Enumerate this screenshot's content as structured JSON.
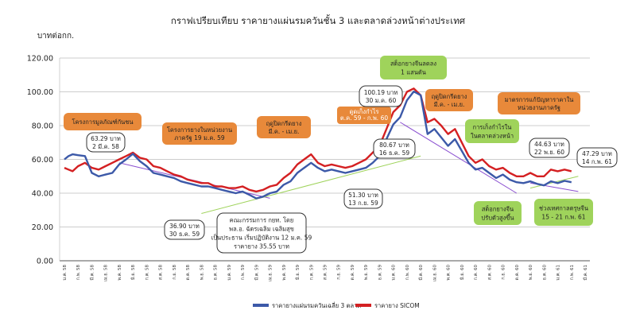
{
  "chart_data": {
    "type": "line",
    "title": "กราฟเปรียบเทียบ ราคายางแผ่นรมควันชั้น 3 และตลาดล่วงหน้าต่างประเทศ",
    "ylabel": "บาทต่อกก.",
    "ylim": [
      0,
      120
    ],
    "yticks": [
      "0.00",
      "20.00",
      "40.00",
      "60.00",
      "80.00",
      "100.00",
      "120.00"
    ],
    "xticks": [
      "ม.ค. 58",
      "ก.พ. 58",
      "มี.ค. 58",
      "เม.ย. 58",
      "พ.ค. 58",
      "มิ.ย. 58",
      "ก.ค. 58",
      "ส.ค. 58",
      "ก.ย. 58",
      "ต.ค. 58",
      "พ.ย. 58",
      "ธ.ค. 58",
      "ม.ค. 59",
      "ก.พ. 59",
      "มี.ค. 59",
      "เม.ย. 59",
      "พ.ค. 59",
      "มิ.ย. 59",
      "ก.ค. 59",
      "ส.ค. 59",
      "ก.ย. 59",
      "ต.ค. 59",
      "พ.ย. 59",
      "ธ.ค. 59",
      "ม.ค. 60",
      "ก.พ. 60",
      "มี.ค. 60",
      "เม.ย. 60",
      "พ.ค. 60",
      "มิ.ย. 60",
      "ก.ค. 60",
      "ส.ค. 60",
      "ก.ย. 60",
      "ต.ค. 60",
      "พ.ย. 60",
      "ธ.ค. 60",
      "ม.ค. 61",
      "ก.พ. 61",
      "มี.ค. 61"
    ],
    "series": [
      {
        "name": "ราคายางแผ่นรมควันเฉลี่ย 3 ตลาด",
        "color": "#3c59a8",
        "x": [
          0,
          0.3,
          0.6,
          1,
          1.5,
          2,
          2.5,
          3,
          3.5,
          4,
          4.5,
          5,
          5.5,
          6,
          6.5,
          7,
          7.5,
          8,
          8.5,
          9,
          9.5,
          10,
          10.5,
          11,
          11.5,
          12,
          12.5,
          13,
          13.5,
          14,
          14.5,
          15,
          15.5,
          16,
          16.5,
          17,
          17.5,
          18,
          18.5,
          19,
          19.5,
          20,
          20.5,
          21,
          21.5,
          22,
          22.5,
          23,
          23.5,
          24,
          24.5,
          25,
          25.5,
          26,
          26.5,
          27,
          27.5,
          28,
          28.5,
          29,
          29.5,
          30,
          30.5,
          31,
          31.5,
          32,
          32.5,
          33,
          33.5,
          34,
          34.5,
          35,
          35.5,
          36,
          36.5,
          37
        ],
        "values": [
          60,
          62,
          63,
          62.5,
          62,
          52,
          50,
          51,
          52,
          57,
          60,
          63.3,
          59,
          56,
          52,
          51,
          50,
          49,
          47,
          46,
          45,
          44,
          44,
          43,
          42,
          41,
          40,
          41,
          39,
          36.9,
          38,
          40,
          41,
          45,
          47,
          52,
          55,
          58,
          55,
          53,
          54,
          53,
          52,
          53,
          54,
          55,
          58,
          62,
          72,
          80.7,
          85,
          95,
          100.2,
          98,
          75,
          78,
          73,
          68,
          72,
          65,
          58,
          54,
          55,
          52,
          49,
          51,
          48,
          46.5,
          46,
          47,
          45.5,
          44.6,
          47,
          46,
          47.3,
          46.5
        ]
      },
      {
        "name": "ราคายาง SICOM",
        "color": "#d42022",
        "x": [
          0,
          0.3,
          0.6,
          1,
          1.5,
          2,
          2.5,
          3,
          3.5,
          4,
          4.5,
          5,
          5.5,
          6,
          6.5,
          7,
          7.5,
          8,
          8.5,
          9,
          9.5,
          10,
          10.5,
          11,
          11.5,
          12,
          12.5,
          13,
          13.5,
          14,
          14.5,
          15,
          15.5,
          16,
          16.5,
          17,
          17.5,
          18,
          18.5,
          19,
          19.5,
          20,
          20.5,
          21,
          21.5,
          22,
          22.5,
          23,
          23.5,
          24,
          24.5,
          25,
          25.5,
          26,
          26.5,
          27,
          27.5,
          28,
          28.5,
          29,
          29.5,
          30,
          30.5,
          31,
          31.5,
          32,
          32.5,
          33,
          33.5,
          34,
          34.5,
          35,
          35.5,
          36,
          36.5,
          37
        ],
        "values": [
          55,
          54,
          53,
          56,
          58,
          55,
          54,
          56,
          58,
          60,
          62,
          64,
          61,
          60,
          56,
          55,
          53,
          51,
          50,
          48,
          47,
          46,
          46,
          44,
          44,
          43,
          43,
          44,
          42,
          41,
          42,
          44,
          45,
          49,
          52,
          57,
          60,
          63,
          58,
          56,
          57,
          56,
          55,
          56,
          58,
          60,
          64,
          68,
          78,
          88,
          92,
          100,
          102,
          98,
          82,
          84,
          80,
          75,
          78,
          70,
          62,
          58,
          60,
          56,
          54,
          55,
          52,
          50,
          50,
          52,
          50,
          50,
          54,
          53,
          54,
          53
        ]
      }
    ],
    "trend_lines": [
      {
        "color": "#8a4fd0",
        "x": [
          4,
          15
        ],
        "values": [
          58,
          37
        ]
      },
      {
        "color": "#9fd35b",
        "x": [
          10,
          26
        ],
        "values": [
          28,
          62
        ]
      },
      {
        "color": "#8a4fd0",
        "x": [
          24.5,
          33
        ],
        "values": [
          82,
          40
        ]
      },
      {
        "color": "#9fd35b",
        "x": [
          34,
          37.5
        ],
        "values": [
          43,
          50
        ]
      },
      {
        "color": "#8a4fd0",
        "x": [
          34,
          37.5
        ],
        "values": [
          46,
          41
        ]
      }
    ],
    "annotations": {
      "orange": [
        {
          "id": "project-stabilize",
          "lines": [
            "โครงการมูลภัณฑ์กันชน"
          ]
        },
        {
          "id": "project-gov",
          "lines": [
            "โครงการยางในหน่วยงาน",
            "ภาครัฐ 19 ม.ค. 59"
          ]
        },
        {
          "id": "season-close-1",
          "lines": [
            "ฤดูปิดกรีดยาง",
            "มี.ค. - เม.ย."
          ]
        },
        {
          "id": "speculation",
          "lines": [
            "ดูดเก็งกำไร",
            "ต.ค. 59 - ก.พ. 60"
          ]
        },
        {
          "id": "season-close-2",
          "lines": [
            "ฤดูปิดกรีดยาง",
            "มี.ค. - เม.ย."
          ]
        },
        {
          "id": "gov-measures",
          "lines": [
            "มาตรการแก้ปัญหาราคาใน",
            "หน่วยงานภาครัฐ"
          ]
        }
      ],
      "green": [
        {
          "id": "stock-high",
          "lines": [
            "สต็อกยางจีนลดลง",
            "1 แสนตัน"
          ]
        },
        {
          "id": "speculate-futures",
          "lines": [
            "การเก็งกำไรใน",
            "ในตลาดล่วงหน้า"
          ]
        },
        {
          "id": "stock-rise",
          "lines": [
            "สต็อกยางจีน",
            "ปรับตัวสูงขึ้น"
          ]
        },
        {
          "id": "china-holiday",
          "lines": [
            "ช่วงเทศกาลตรุษจีน",
            "15 - 21 ก.พ. 61"
          ]
        }
      ],
      "white": [
        {
          "id": "p-6329",
          "lines": [
            "63.29 บาท",
            "2 มี.ค. 58"
          ]
        },
        {
          "id": "p-3690",
          "lines": [
            "36.90 บาท",
            "30 ธ.ค. 59"
          ]
        },
        {
          "id": "committee",
          "lines": [
            "คณะกรรมการ กยท. โดย",
            "พล.อ. ฉัตรเฉลิม เฉลิมสุข",
            "เป็นประธาน เริ่มปฏิบัติงาน 12 ม.ค. 59",
            "ราคายาง 35.55 บาท"
          ]
        },
        {
          "id": "p-10019",
          "lines": [
            "100.19 บาท",
            "30 ม.ค. 60"
          ]
        },
        {
          "id": "p-8067",
          "lines": [
            "80.67 บาท",
            "16 ธ.ค. 59"
          ]
        },
        {
          "id": "p-5130",
          "lines": [
            "51.30 บาท",
            "13 ก.ย. 59"
          ]
        },
        {
          "id": "p-4463",
          "lines": [
            "44.63 บาท",
            "22 พ.ย. 60"
          ]
        },
        {
          "id": "p-4729",
          "lines": [
            "47.29 บาท",
            "14 ก.พ. 61"
          ]
        }
      ]
    },
    "legend": {
      "placement": "bottom",
      "items": [
        {
          "label": "ราคายางแผ่นรมควันเฉลี่ย 3 ตลาด",
          "color": "#3c59a8"
        },
        {
          "label": "ราคายาง SICOM",
          "color": "#d42022"
        }
      ]
    },
    "grid": true
  }
}
